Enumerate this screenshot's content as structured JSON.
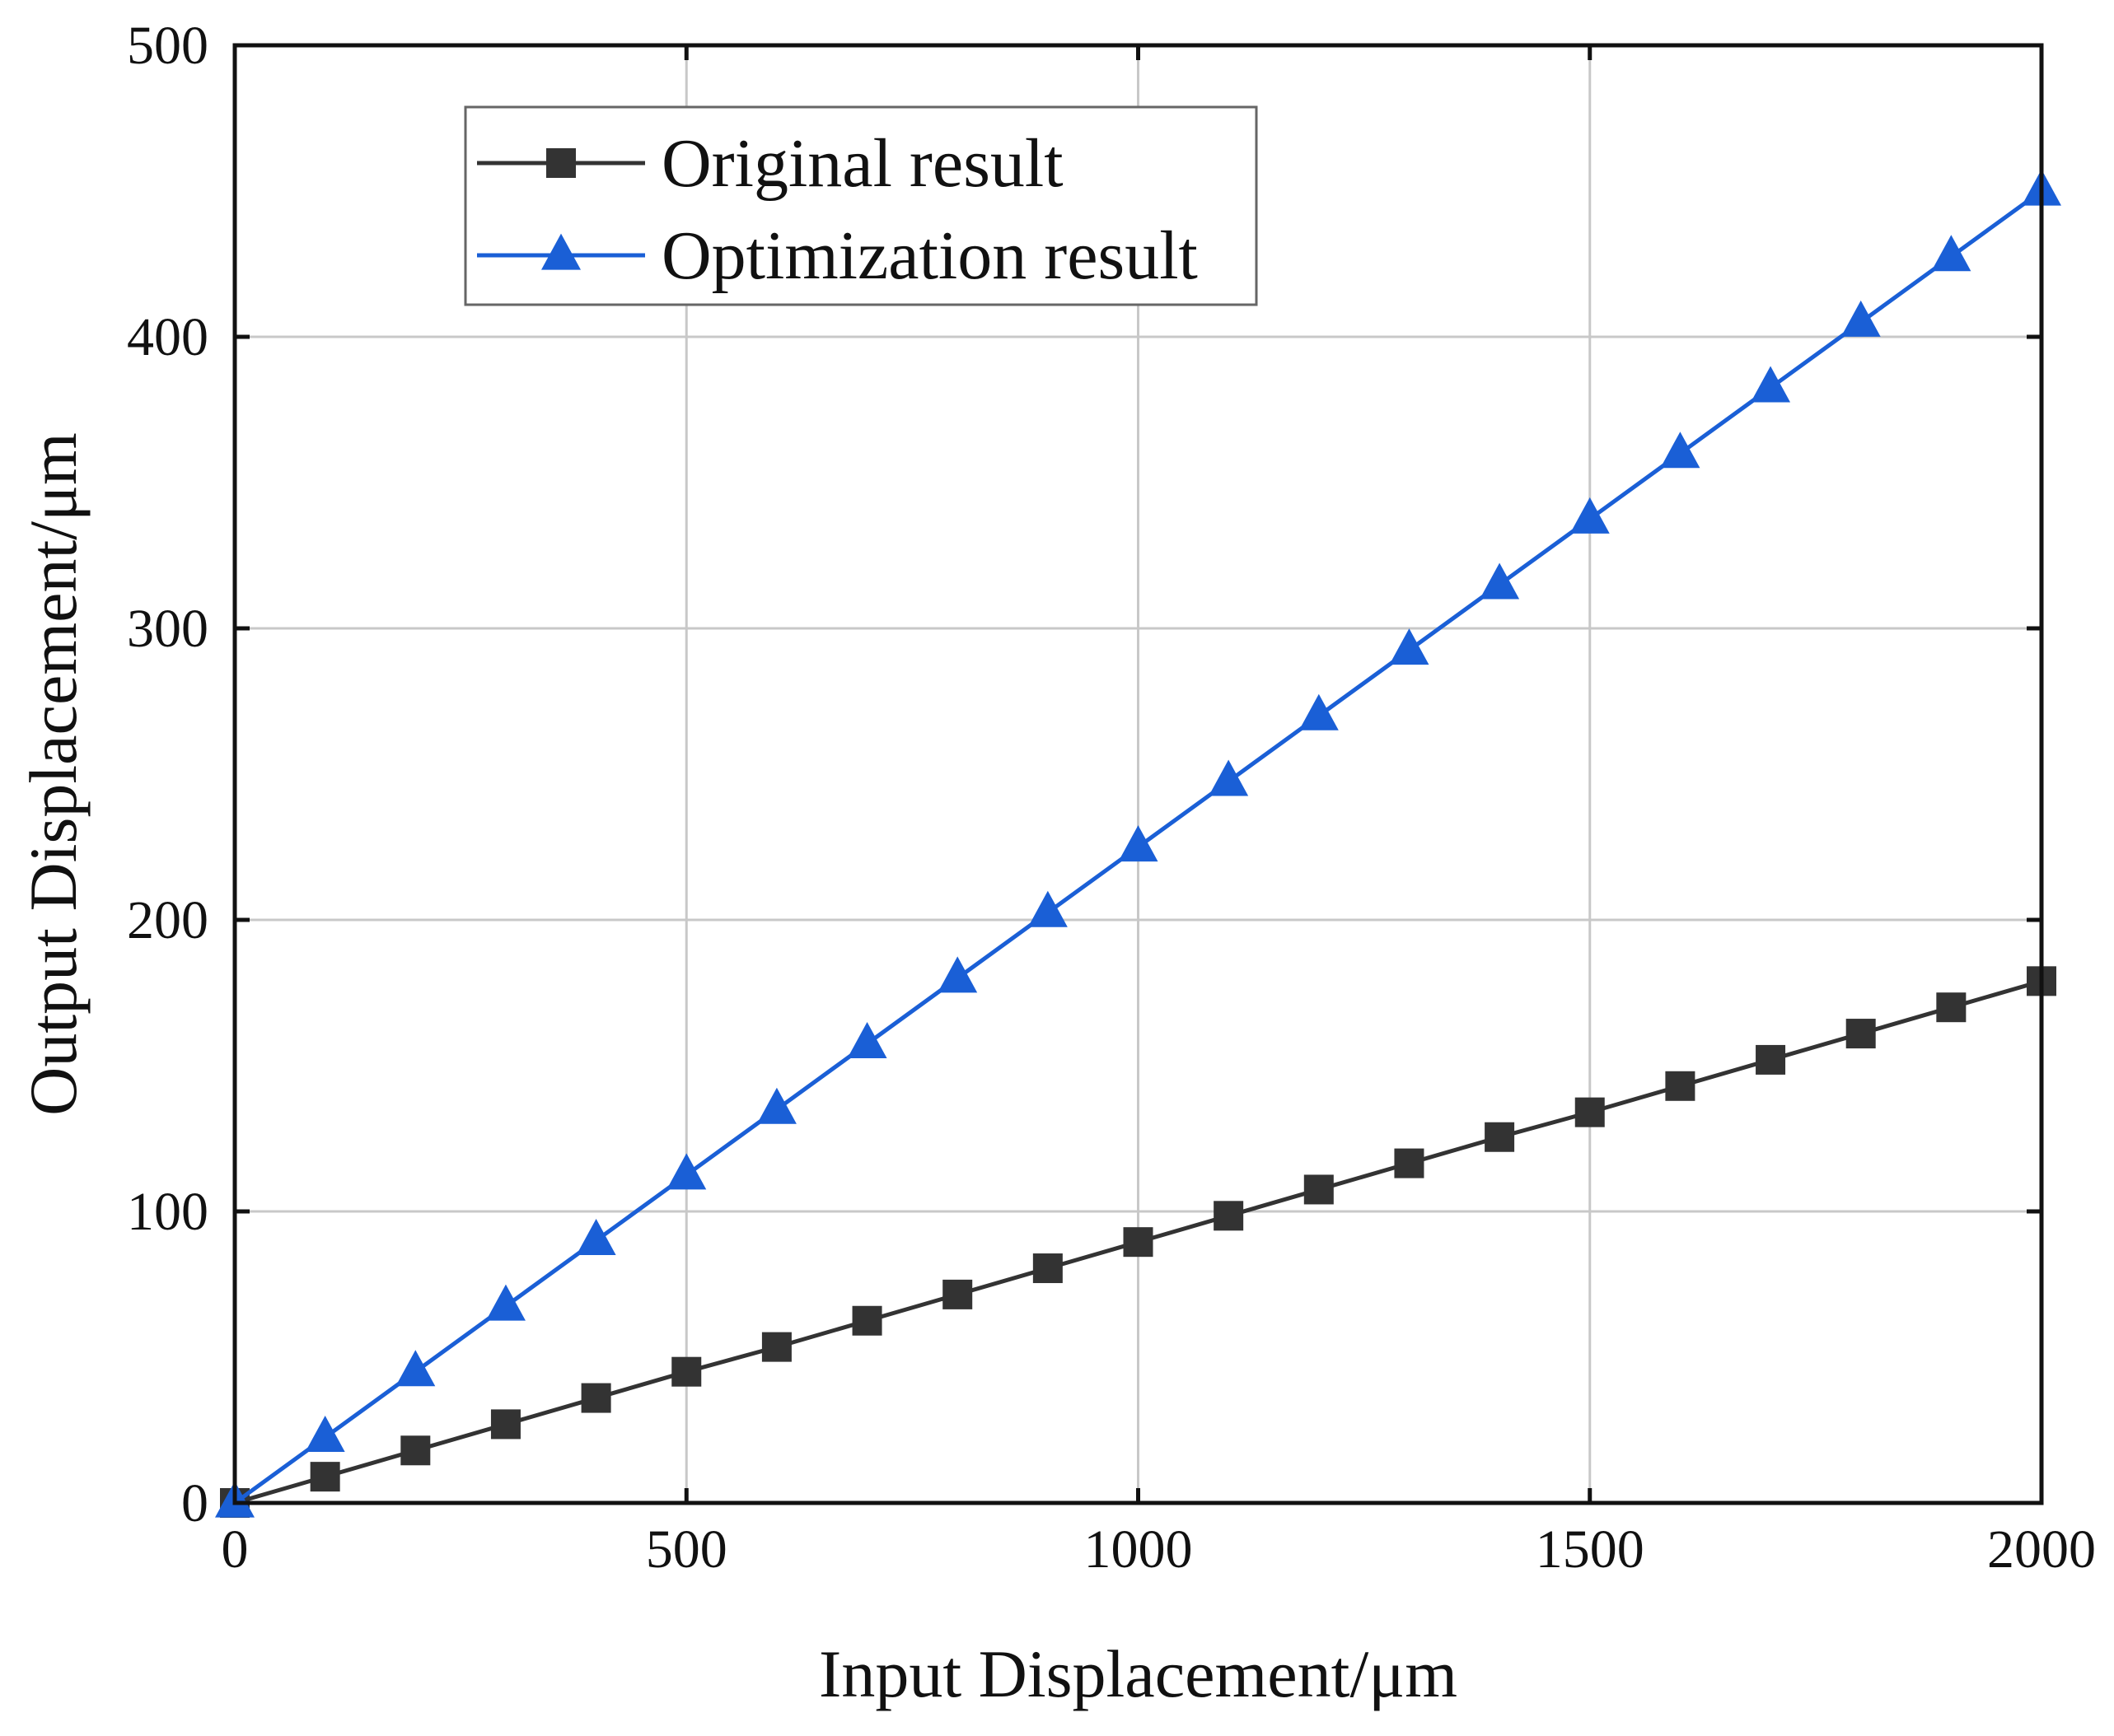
{
  "chart_data": {
    "type": "line",
    "title": "",
    "xlabel": "Input Displacement/μm",
    "ylabel": "Output Displacement/μm",
    "xlim": [
      0,
      2000
    ],
    "ylim": [
      0,
      500
    ],
    "xticks": [
      0,
      500,
      1000,
      1500,
      2000
    ],
    "yticks": [
      0,
      100,
      200,
      300,
      400,
      500
    ],
    "xtick_labels": [
      "0",
      "500",
      "1000",
      "1500",
      "2000"
    ],
    "ytick_labels": [
      "0",
      "100",
      "200",
      "300",
      "400",
      "500"
    ],
    "grid": true,
    "legend_position": "top-left",
    "x": [
      0,
      100,
      200,
      300,
      400,
      500,
      600,
      700,
      800,
      900,
      1000,
      1100,
      1200,
      1300,
      1400,
      1500,
      1600,
      1700,
      1800,
      1900,
      2000
    ],
    "series": [
      {
        "name": "Original result",
        "color": "#333333",
        "marker": "square",
        "values": [
          0,
          9,
          18,
          27,
          36,
          45,
          53.5,
          62.5,
          71.5,
          80.5,
          89.5,
          98.5,
          107.5,
          116.5,
          125.5,
          134,
          143,
          152,
          161,
          170,
          179
        ]
      },
      {
        "name": "Optimization result",
        "color": "#1a5fd6",
        "marker": "triangle",
        "values": [
          0,
          22.5,
          45,
          67.5,
          90,
          112.5,
          135,
          157.5,
          180,
          202.5,
          225,
          247.5,
          270,
          292.5,
          315,
          337.5,
          360,
          382.5,
          405,
          427.5,
          450
        ]
      }
    ]
  }
}
